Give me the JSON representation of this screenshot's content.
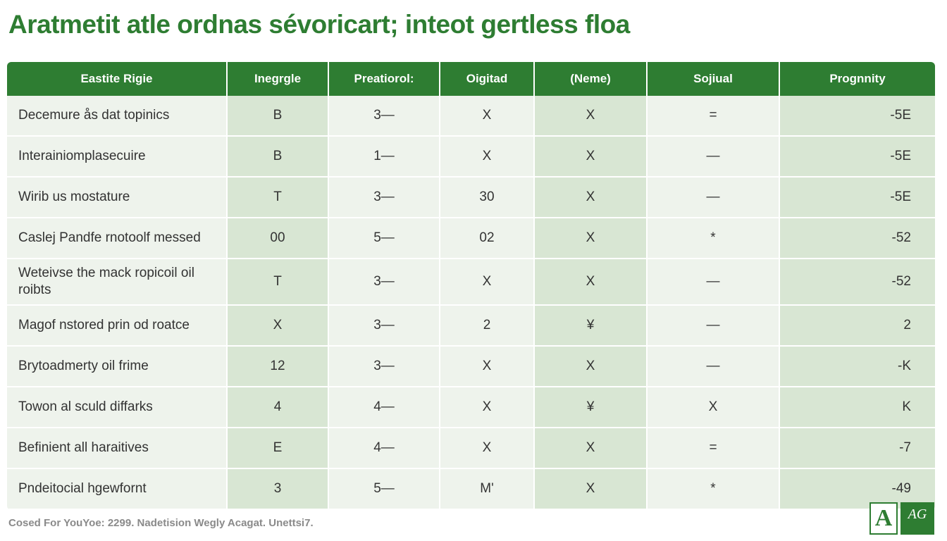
{
  "page": {
    "title": "Aratmetit atle ordnas sévoricart; inteot gertless floa",
    "footer": "Cosed For YouYoe: 2299. Nadetision Wegly Acagat. Unettsi7.",
    "logo_letter": "A",
    "logo_text": "AG"
  },
  "table": {
    "headers": [
      "Eastite Rigie",
      "Inegrgle",
      "Preatiorol:",
      "Oigitad",
      "(Neme)",
      "Sojiual",
      "Prognnity"
    ],
    "rows": [
      [
        "Decemure ås dat topinics",
        "B",
        "3—",
        "X",
        "X",
        "=",
        "-5E"
      ],
      [
        "Interainiomplasecuire",
        "B",
        "1—",
        "X",
        "X",
        "—",
        "-5E"
      ],
      [
        "Wirib us mostature",
        "T",
        "3—",
        "30",
        "X",
        "—",
        "-5E"
      ],
      [
        "Caslej Pandfe rnotoolf messed",
        "00",
        "5—",
        "02",
        "X",
        "*",
        "-52"
      ],
      [
        "Weteivse the mack ropicoil oil roibts",
        "T",
        "3—",
        "X",
        "X",
        "—",
        "-52"
      ],
      [
        "Magof nstored prin od roatce",
        "X",
        "3—",
        "2",
        "¥",
        "—",
        "2"
      ],
      [
        "Brytoadmerty oil frime",
        "12",
        "3—",
        "X",
        "X",
        "—",
        "-K"
      ],
      [
        "Towon al sculd diffarks",
        "4",
        "4—",
        "X",
        "¥",
        "X",
        "K"
      ],
      [
        "Befinient all haraitives",
        "E",
        "4—",
        "X",
        "X",
        "=",
        "-7"
      ],
      [
        "Pndeitocial hgewfornt",
        "3",
        "5—",
        "M'",
        "X",
        "*",
        "-49"
      ]
    ]
  },
  "colors": {
    "accent": "#2e7d32",
    "header_text": "#ffffff",
    "cell_light": "#eef3ec",
    "cell_dark": "#d8e6d3",
    "footer_text": "#8a8a8a"
  }
}
